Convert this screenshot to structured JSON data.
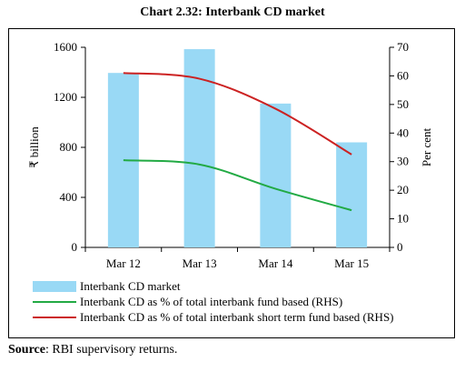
{
  "title": "Chart 2.32: Interbank CD market",
  "source": {
    "label": "Source",
    "text": ": RBI supervisory returns."
  },
  "chart_data": {
    "type": "bar",
    "categories": [
      "Mar 12",
      "Mar 13",
      "Mar 14",
      "Mar 15"
    ],
    "ylabel_left": "₹ billion",
    "ylabel_right": "Per cent",
    "ylim_left": [
      0,
      1600
    ],
    "yticks_left": [
      0,
      400,
      800,
      1200,
      1600
    ],
    "ylim_right": [
      0,
      70
    ],
    "yticks_right": [
      0,
      10,
      20,
      30,
      40,
      50,
      60,
      70
    ],
    "grid": false,
    "legend_position": "bottom",
    "series": [
      {
        "name": "Interbank CD market",
        "type": "bar",
        "axis": "left",
        "values": [
          1395,
          1585,
          1150,
          840
        ],
        "color": "#99d9f5"
      },
      {
        "name": "Interbank CD as % of total interbank fund based (RHS)",
        "type": "line",
        "axis": "right",
        "values": [
          30.5,
          29,
          20.5,
          13
        ],
        "color": "#22aa44"
      },
      {
        "name": "Interbank CD as % of total interbank short term fund based (RHS)",
        "type": "line",
        "axis": "right",
        "values": [
          61,
          59,
          48.5,
          32.5
        ],
        "color": "#cc2222"
      }
    ]
  }
}
